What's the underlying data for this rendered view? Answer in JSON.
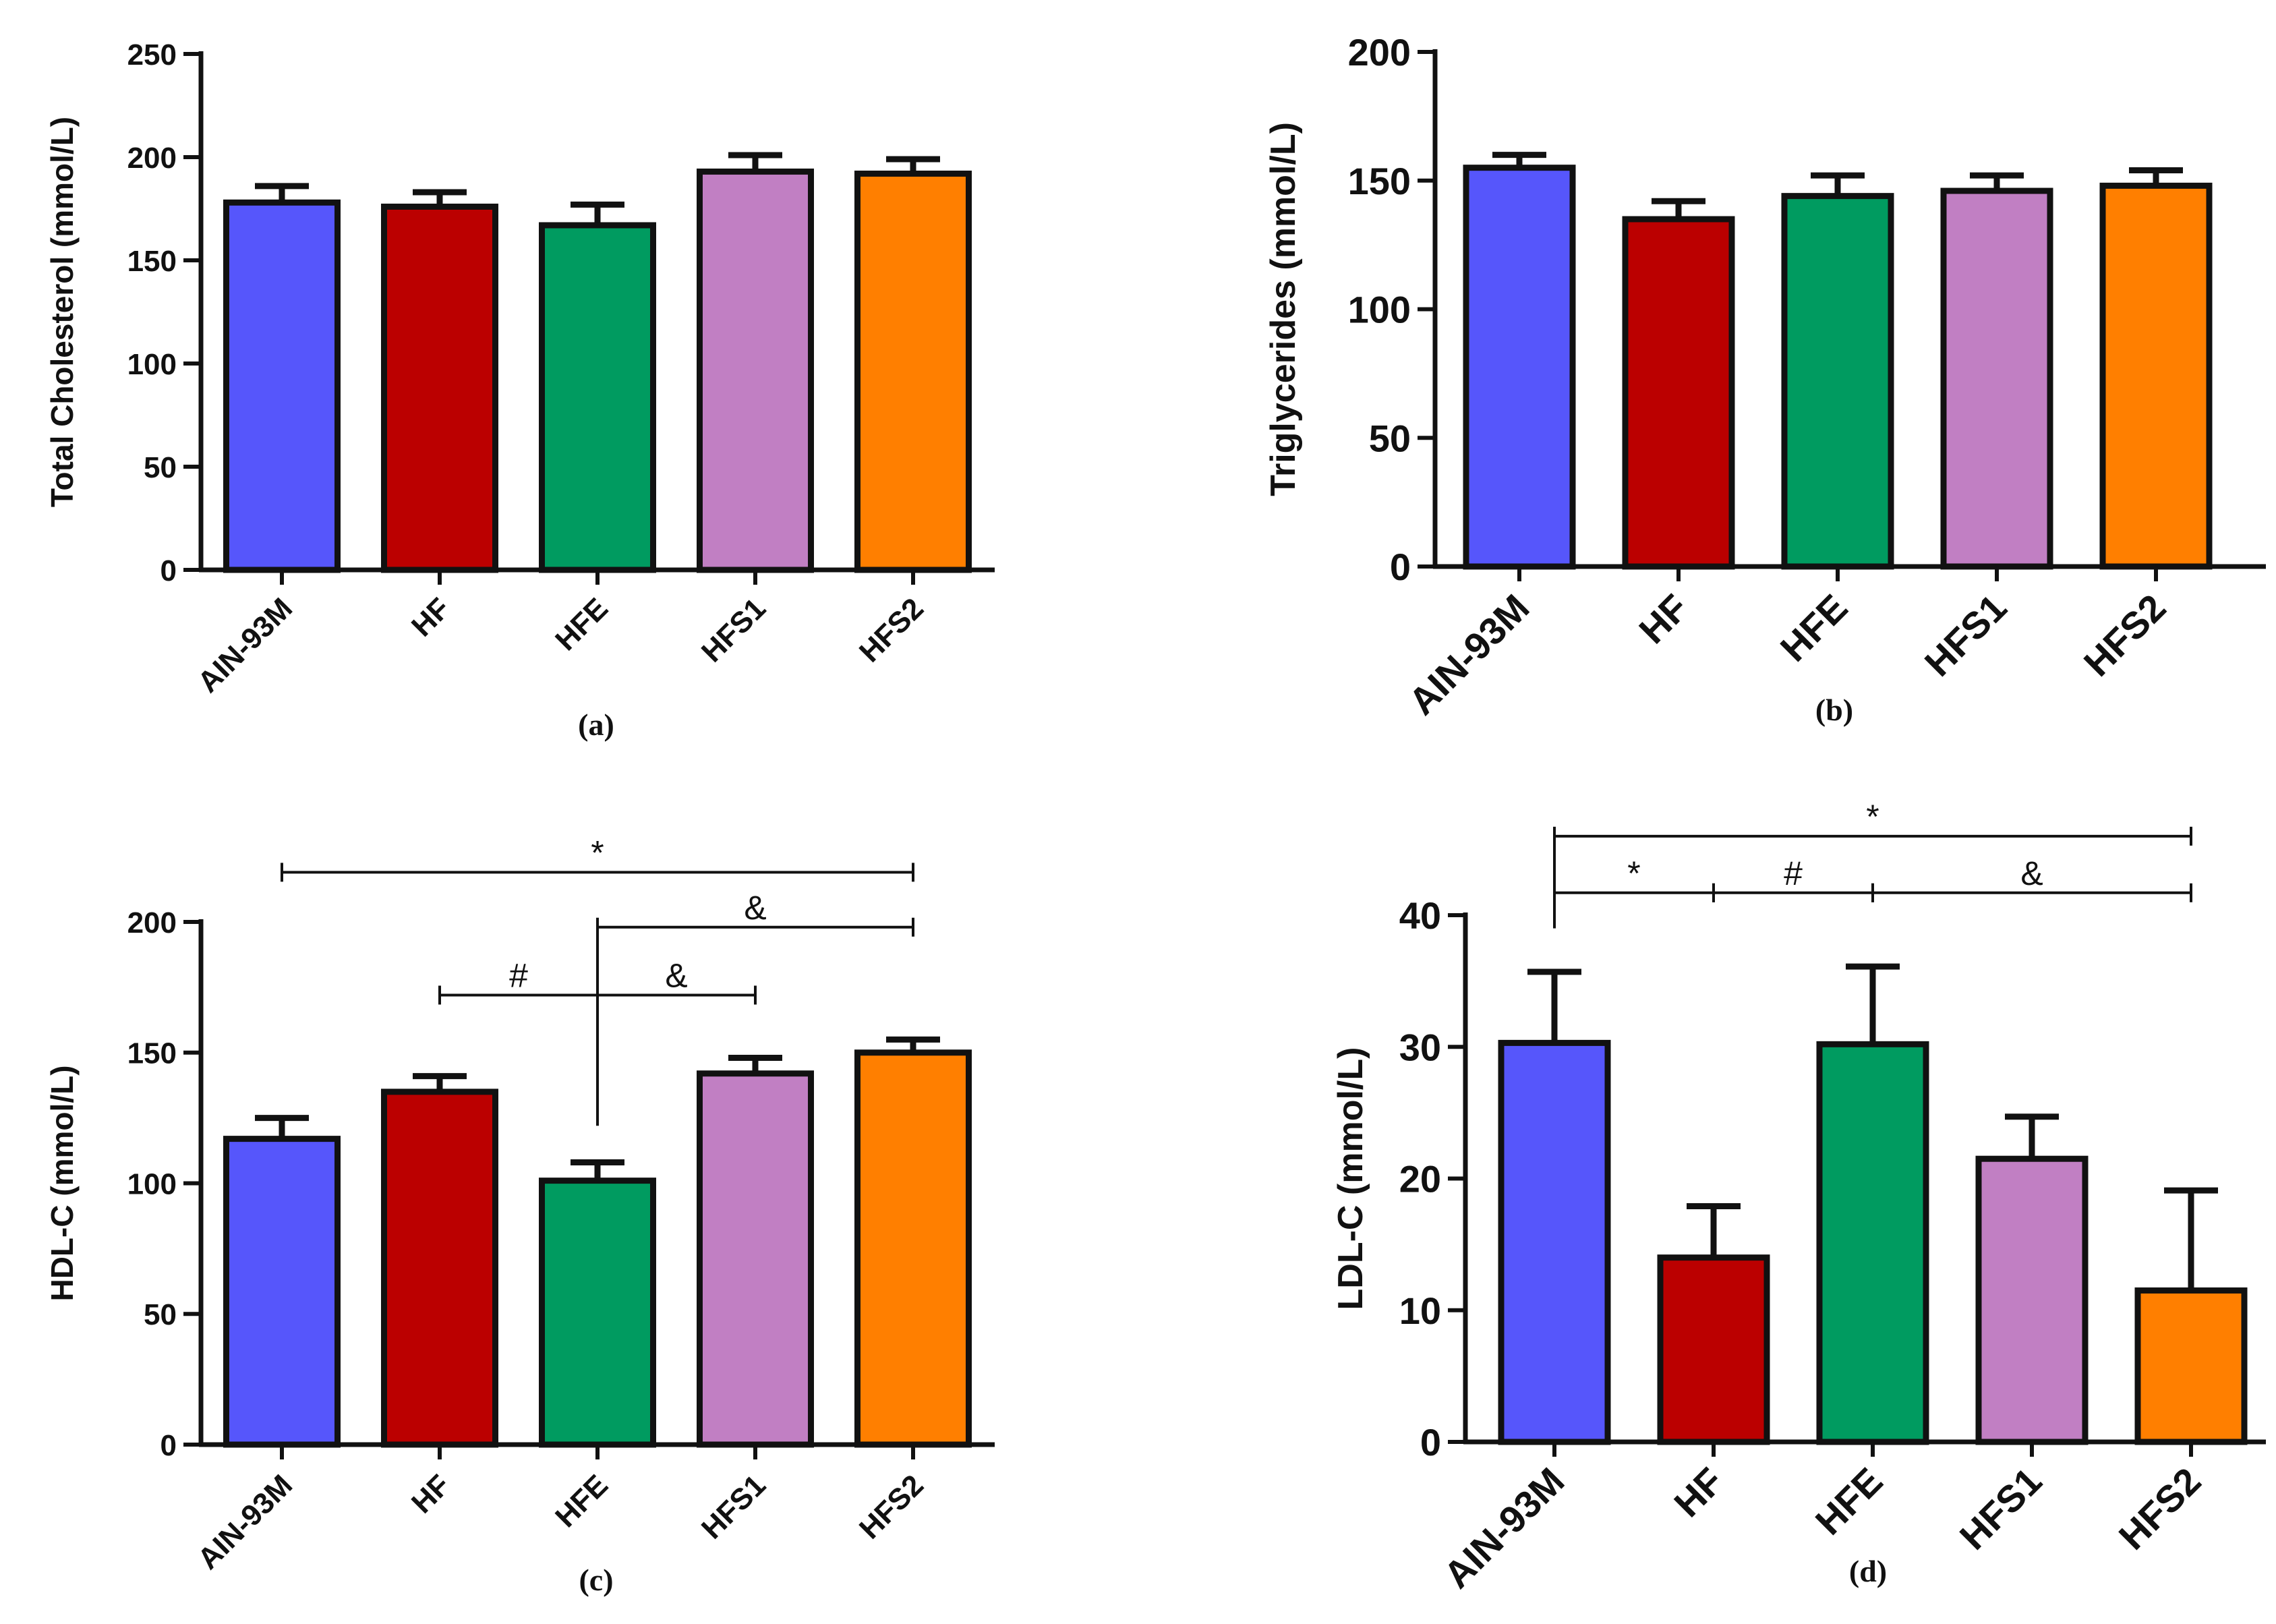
{
  "figure": {
    "colors": {
      "AIN-93M": "#5656fb",
      "HF": "#bb0000",
      "HFE": "#009b60",
      "HFS1": "#c17fc3",
      "HFS2": "#ff7f00",
      "axis": "#111111"
    }
  },
  "chart_data": [
    {
      "type": "bar",
      "panel_label": "(a)",
      "ylabel": "Total Cholesterol (mmol/L)",
      "categories": [
        "AIN-93M",
        "HF",
        "HFE",
        "HFS1",
        "HFS2"
      ],
      "values": [
        178,
        176,
        167,
        193,
        192
      ],
      "errors": [
        8,
        7,
        10,
        8,
        7
      ],
      "ylim": [
        0,
        250
      ],
      "yticks": [
        0,
        50,
        100,
        150,
        200,
        250
      ],
      "annotations": []
    },
    {
      "type": "bar",
      "panel_label": "(b)",
      "ylabel": "Triglycerides (mmol/L)",
      "categories": [
        "AIN-93M",
        "HF",
        "HFE",
        "HFS1",
        "HFS2"
      ],
      "values": [
        155,
        135,
        144,
        146,
        148
      ],
      "errors": [
        5,
        7,
        8,
        6,
        6
      ],
      "ylim": [
        0,
        200
      ],
      "yticks": [
        0,
        50,
        100,
        150,
        200
      ],
      "annotations": []
    },
    {
      "type": "bar",
      "panel_label": "(c)",
      "ylabel": "HDL-C (mmol/L)",
      "categories": [
        "AIN-93M",
        "HF",
        "HFE",
        "HFS1",
        "HFS2"
      ],
      "values": [
        117,
        135,
        101,
        142,
        150
      ],
      "errors": [
        8,
        6,
        7,
        6,
        5
      ],
      "ylim": [
        0,
        200
      ],
      "yticks": [
        0,
        50,
        100,
        150,
        200
      ],
      "annotations": [
        {
          "symbol": "*",
          "from": "AIN-93M",
          "to": "HFS2",
          "y": 219
        },
        {
          "symbol": "&",
          "from": "HFE",
          "to": "HFS2",
          "y": 198
        },
        {
          "symbol": "#",
          "from": "HF",
          "to": "HFE",
          "y": 172
        },
        {
          "symbol": "&",
          "from": "HFE",
          "to": "HFS1",
          "y": 172
        }
      ]
    },
    {
      "type": "bar",
      "panel_label": "(d)",
      "ylabel": "LDL-C (mmol/L)",
      "categories": [
        "AIN-93M",
        "HF",
        "HFE",
        "HFS1",
        "HFS2"
      ],
      "values": [
        30.3,
        14,
        30.2,
        21.5,
        11.5
      ],
      "errors": [
        5.4,
        3.9,
        5.9,
        3.2,
        7.6
      ],
      "ylim": [
        0,
        40
      ],
      "yticks": [
        0,
        10,
        20,
        30,
        40
      ],
      "annotations": [
        {
          "symbol": "*",
          "from": "AIN-93M",
          "to": "HFS2",
          "y": 46
        },
        {
          "symbol": "*",
          "from": "AIN-93M",
          "to": "HF",
          "y": 41.7
        },
        {
          "symbol": "#",
          "from": "HF",
          "to": "HFE",
          "y": 41.7
        },
        {
          "symbol": "&",
          "from": "HFE",
          "to": "HFS2",
          "y": 41.7
        }
      ]
    }
  ]
}
